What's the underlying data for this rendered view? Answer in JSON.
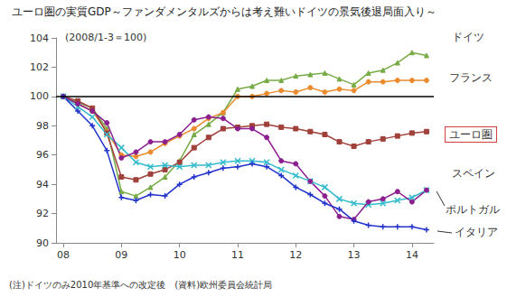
{
  "chart_data": {
    "type": "line",
    "title": "ユーロ圏の実質GDP～ファンダメンタルズからは考え難いドイツの景気後退局面入り～",
    "subtitle": "(2008/1-3＝100)",
    "note": "(注)ドイツのみ2010年基準への改定後　(資料)欧州委員会統計局",
    "categories": [
      "08",
      null,
      null,
      null,
      "09",
      null,
      null,
      null,
      "10",
      null,
      null,
      null,
      "11",
      null,
      null,
      null,
      "12",
      null,
      null,
      null,
      "13",
      null,
      null,
      null,
      "14",
      null
    ],
    "series": [
      {
        "name": "ドイツ",
        "color": "#77ab45",
        "marker": "triangle",
        "values": [
          100,
          99.6,
          99.2,
          97.8,
          93.5,
          93.2,
          93.8,
          94.5,
          95.6,
          97.4,
          98.1,
          98.9,
          100.5,
          100.7,
          101.1,
          101.1,
          101.4,
          101.5,
          101.6,
          101.2,
          100.8,
          101.6,
          101.8,
          102.3,
          103.0,
          102.8
        ]
      },
      {
        "name": "フランス",
        "color": "#e98b2e",
        "marker": "circle",
        "values": [
          100,
          99.5,
          99.0,
          97.6,
          96.0,
          95.9,
          96.2,
          96.8,
          97.3,
          97.8,
          98.5,
          98.9,
          100.0,
          100.0,
          100.2,
          100.4,
          100.3,
          100.6,
          100.3,
          100.5,
          100.4,
          101.0,
          101.0,
          101.1,
          101.1,
          101.1
        ]
      },
      {
        "name": "ユーロ圏",
        "color": "#a0403a",
        "marker": "square",
        "values": [
          100,
          99.7,
          99.2,
          97.5,
          94.5,
          94.3,
          94.7,
          95.0,
          95.5,
          96.5,
          97.2,
          97.8,
          97.9,
          98.0,
          98.1,
          97.9,
          97.8,
          97.6,
          97.4,
          96.9,
          96.6,
          96.9,
          97.1,
          97.3,
          97.5,
          97.6
        ]
      },
      {
        "name": "スペイン",
        "color": "#33bbcc",
        "marker": "x",
        "values": [
          100,
          99.3,
          98.6,
          97.4,
          96.5,
          95.5,
          95.2,
          95.3,
          95.2,
          95.3,
          95.3,
          95.5,
          95.6,
          95.6,
          95.5,
          95.0,
          94.6,
          94.2,
          93.8,
          93.0,
          92.7,
          92.6,
          92.7,
          92.9,
          93.1,
          93.6
        ]
      },
      {
        "name": "ポルトガル",
        "color": "#8b1f8f",
        "marker": "circle",
        "values": [
          100,
          99.5,
          99.0,
          98.2,
          95.8,
          96.2,
          96.9,
          96.9,
          97.4,
          98.4,
          98.6,
          98.5,
          97.8,
          97.8,
          97.2,
          95.6,
          95.4,
          94.2,
          93.2,
          91.8,
          91.6,
          92.8,
          93.0,
          93.5,
          92.8,
          93.6
        ]
      },
      {
        "name": "イタリア",
        "color": "#2233cc",
        "marker": "plus",
        "values": [
          100,
          99.0,
          98.0,
          96.3,
          93.1,
          92.9,
          93.3,
          93.2,
          94.0,
          94.5,
          94.8,
          95.1,
          95.2,
          95.4,
          95.2,
          94.6,
          93.8,
          93.3,
          92.7,
          92.3,
          91.5,
          91.2,
          91.1,
          91.1,
          91.1,
          90.9
        ]
      }
    ],
    "reference_line": {
      "value": 100,
      "color": "#000000"
    },
    "ylim": [
      90,
      104
    ],
    "yticks": [
      90,
      92,
      94,
      96,
      98,
      100,
      102,
      104
    ],
    "grid": false
  }
}
